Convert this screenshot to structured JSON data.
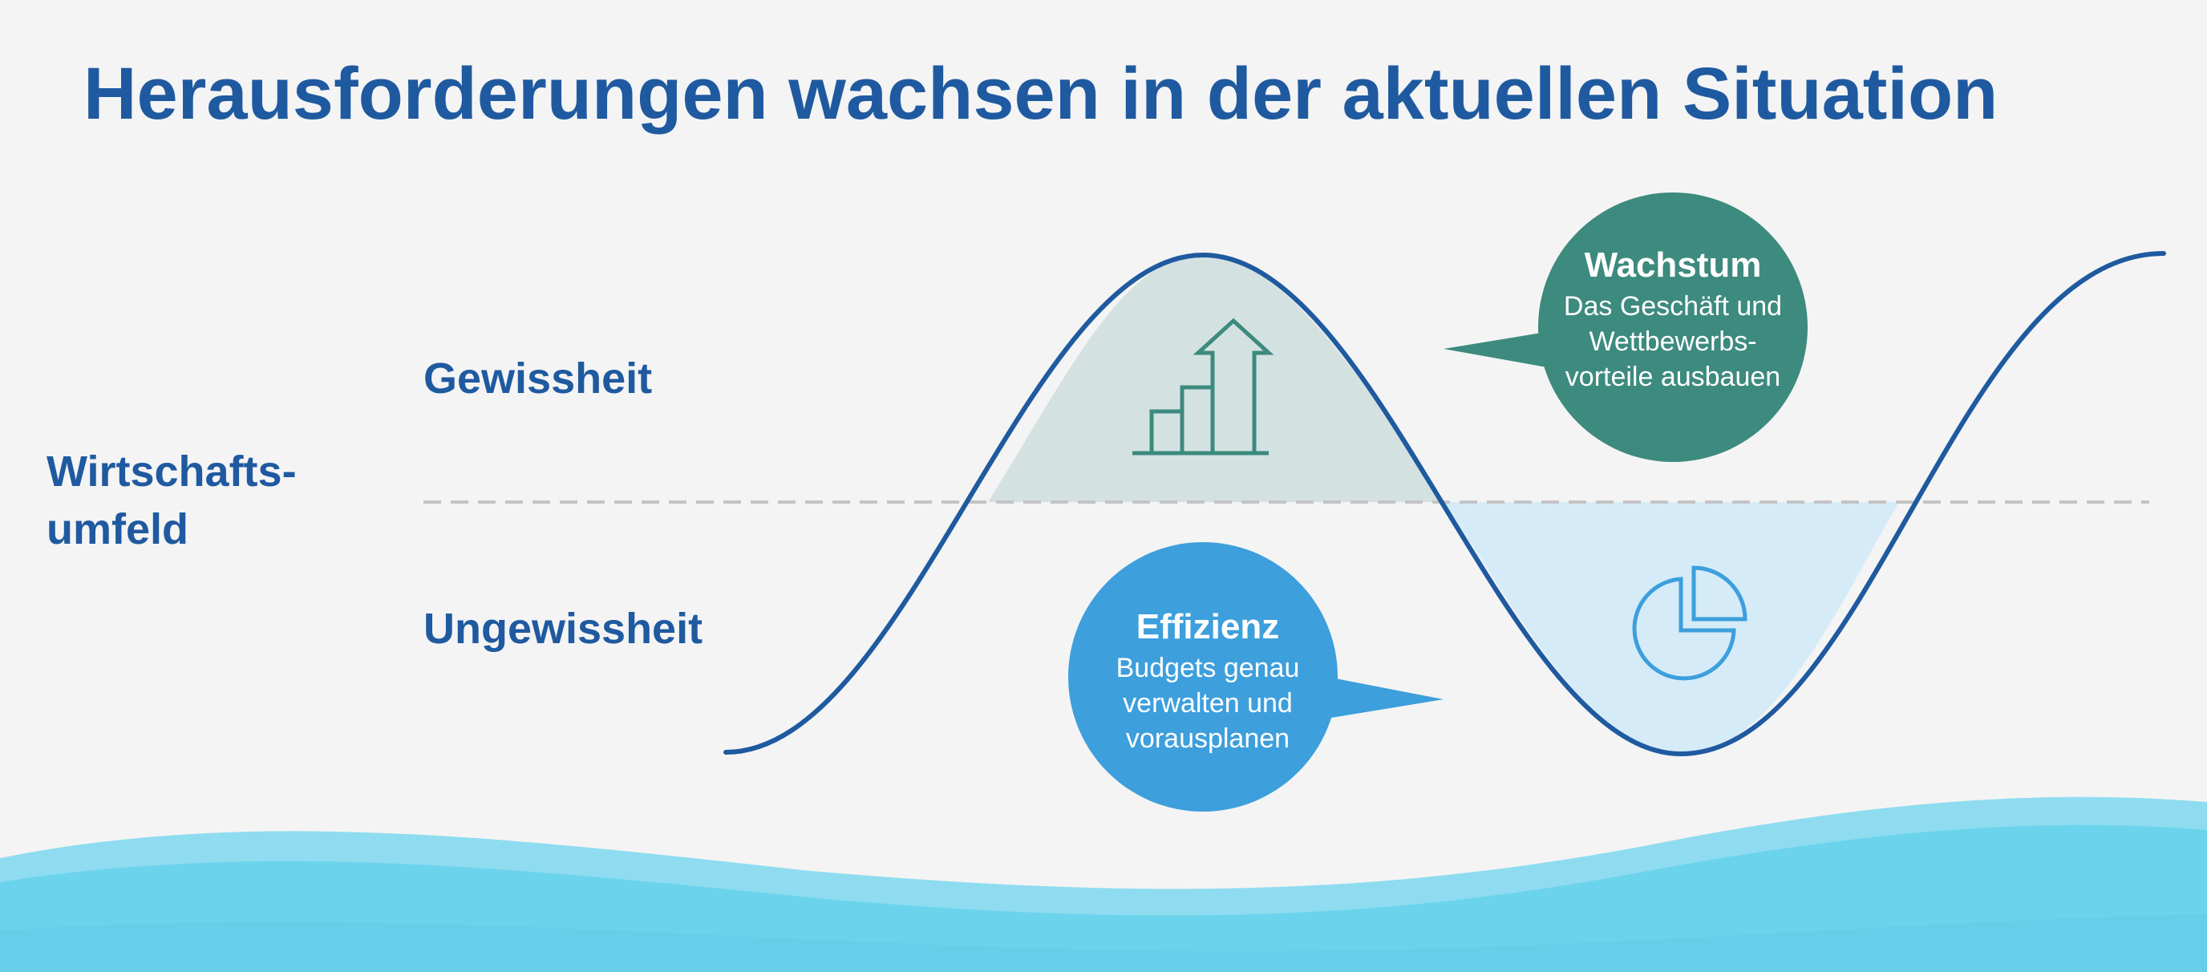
{
  "title": "Herausforderungen wachsen in der aktuellen Situation",
  "y_axis": {
    "label_line1": "Wirtschafts-",
    "label_line2": "umfeld",
    "upper": "Gewissheit",
    "lower": "Ungewissheit"
  },
  "callouts": {
    "growth": {
      "title": "Wachstum",
      "line1": "Das Geschäft und",
      "line2": "Wettbewerbs-",
      "line3": "vorteile ausbauen",
      "color": "#3d8a7e",
      "icon": "growth-bar-chart-icon"
    },
    "efficiency": {
      "title": "Effizienz",
      "line1": "Budgets genau",
      "line2": "verwalten und",
      "line3": "vorausplanen",
      "color": "#3d9fdc",
      "icon": "pie-chart-icon"
    }
  },
  "colors": {
    "title": "#1f5aa0",
    "curve": "#1f5aa0",
    "upper_fill": "#d3e2e1",
    "lower_fill": "#d5ebf8",
    "divider": "#c4c4c4",
    "wave": "#6cd3ec"
  }
}
